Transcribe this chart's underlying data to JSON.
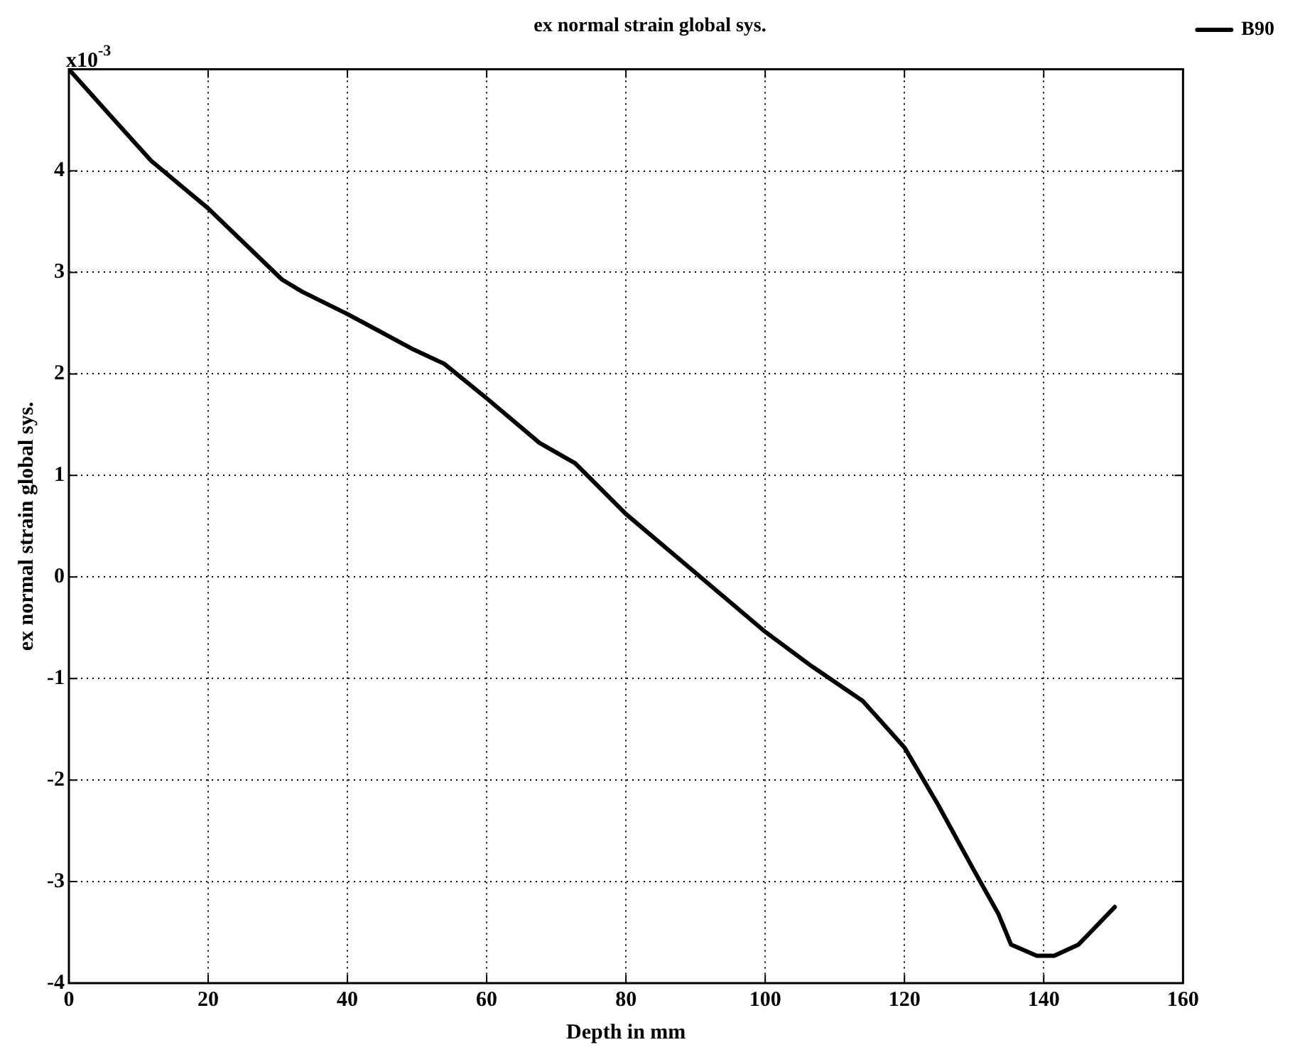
{
  "chart_data": {
    "type": "line",
    "title": "ex normal strain global sys.",
    "xlabel": "Depth in mm",
    "ylabel": "ex normal strain global sys.",
    "annotations": [
      "x10$^{-3}$"
    ],
    "x": [
      0,
      6,
      11.8,
      20,
      30.6,
      33.5,
      40,
      49.5,
      53.9,
      60,
      67.6,
      72.7,
      80,
      90,
      100,
      106.7,
      114,
      120,
      124.8,
      129.9,
      133.5,
      135.3,
      139,
      141.5,
      145,
      150.2
    ],
    "series": [
      {
        "name": "B90",
        "color": "#000000",
        "values": [
          5.0,
          4.54,
          4.1,
          3.63,
          2.93,
          2.81,
          2.59,
          2.24,
          2.1,
          1.76,
          1.32,
          1.12,
          0.62,
          0.04,
          -0.54,
          -0.88,
          -1.22,
          -1.68,
          -2.24,
          -2.88,
          -3.32,
          -3.62,
          -3.73,
          -3.73,
          -3.62,
          -3.25
        ]
      }
    ],
    "xlim": [
      0,
      160
    ],
    "xticks": [
      0,
      20,
      40,
      60,
      80,
      100,
      120,
      140,
      160
    ],
    "ylim": [
      -4,
      5
    ],
    "yticks": [
      -4,
      -3,
      -2,
      -1,
      0,
      1,
      2,
      3,
      4
    ],
    "grid": true,
    "legend": "top right",
    "marker": "none",
    "line_style": "solid"
  }
}
